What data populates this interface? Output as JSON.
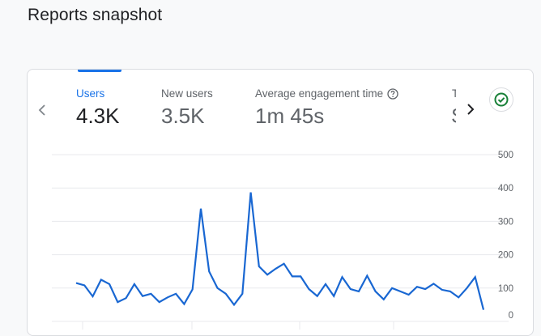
{
  "page": {
    "title": "Reports snapshot"
  },
  "card": {
    "icons": {
      "prev": "chevron-left-icon",
      "next": "chevron-right-icon",
      "help": "help-circle-icon",
      "status": "check-circle-icon"
    },
    "colors": {
      "accent": "#1a73e8",
      "line": "#1967d2",
      "status": "#188038",
      "gridline": "#e8eaed"
    },
    "metrics": [
      {
        "label": "Users",
        "value": "4.3K",
        "active": true
      },
      {
        "label": "New users",
        "value": "3.5K",
        "active": false
      },
      {
        "label": "Average engagement time",
        "value": "1m 45s",
        "active": false,
        "has_help": true
      },
      {
        "label": "T",
        "value": "$",
        "active": false,
        "truncated": true
      }
    ]
  },
  "chart_data": {
    "type": "line",
    "title": "",
    "xlabel": "",
    "ylabel": "",
    "ylim": [
      0,
      500
    ],
    "yticks": [
      0,
      100,
      200,
      300,
      400,
      500
    ],
    "y_axis_position": "right",
    "grid": true,
    "legend": null,
    "series": [
      {
        "name": "Users",
        "values": [
          115,
          108,
          75,
          125,
          112,
          58,
          70,
          112,
          76,
          83,
          58,
          72,
          83,
          52,
          96,
          338,
          150,
          100,
          83,
          50,
          83,
          387,
          165,
          140,
          158,
          173,
          135,
          135,
          97,
          76,
          112,
          76,
          133,
          97,
          90,
          137,
          90,
          66,
          100,
          90,
          80,
          104,
          97,
          113,
          95,
          90,
          72,
          100,
          133,
          35
        ]
      }
    ]
  }
}
